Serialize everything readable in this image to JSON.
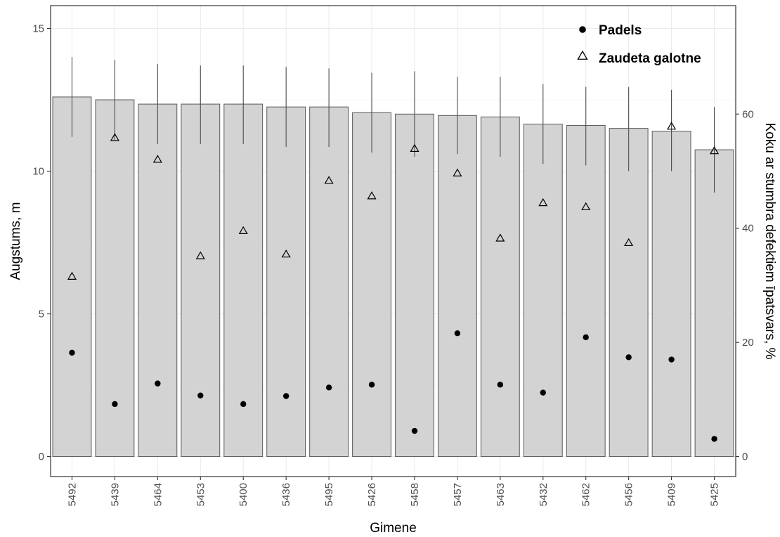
{
  "chart_data": {
    "type": "bar",
    "title": "",
    "xlabel": "Gimene",
    "ylabel": "Augstums, m",
    "y2label": "Koku ar stumbra defektiem īpatsvars, %",
    "ylim": [
      -0.7,
      15.8
    ],
    "yticks": [
      0,
      5,
      10,
      15
    ],
    "y2lim": [
      -3.5,
      79
    ],
    "y2ticks": [
      0,
      20,
      40,
      60
    ],
    "grid": true,
    "legend_position": "top-right",
    "categories": [
      "5492",
      "5439",
      "5464",
      "5453",
      "5400",
      "5436",
      "5495",
      "5426",
      "5458",
      "5457",
      "5463",
      "5432",
      "5462",
      "5456",
      "5409",
      "5425"
    ],
    "bars": {
      "axis": "left",
      "values": [
        12.6,
        12.5,
        12.35,
        12.35,
        12.35,
        12.25,
        12.25,
        12.05,
        12.0,
        11.95,
        11.9,
        11.65,
        11.6,
        11.5,
        11.4,
        10.75
      ],
      "error_high": [
        14.0,
        13.9,
        13.75,
        13.7,
        13.7,
        13.65,
        13.6,
        13.45,
        13.5,
        13.3,
        13.3,
        13.05,
        12.95,
        12.95,
        12.85,
        12.25
      ],
      "error_low": [
        11.2,
        11.1,
        10.95,
        10.95,
        10.95,
        10.85,
        10.85,
        10.65,
        10.5,
        10.6,
        10.5,
        10.25,
        10.2,
        10.0,
        10.0,
        9.25
      ],
      "color": "#d3d3d3",
      "edge_color": "#595959"
    },
    "series": [
      {
        "name": "Padels",
        "axis": "right",
        "marker": "filled-circle",
        "values": [
          18.2,
          9.2,
          12.8,
          10.7,
          9.2,
          10.6,
          12.1,
          12.6,
          4.5,
          21.6,
          12.6,
          11.2,
          20.9,
          17.4,
          17.0,
          3.1
        ]
      },
      {
        "name": "Zaudeta galotne",
        "axis": "right",
        "marker": "open-triangle",
        "values": [
          31.5,
          55.8,
          52.0,
          35.1,
          39.5,
          35.4,
          48.3,
          45.6,
          53.9,
          49.6,
          38.2,
          44.4,
          43.7,
          37.4,
          57.8,
          53.5
        ]
      }
    ]
  }
}
